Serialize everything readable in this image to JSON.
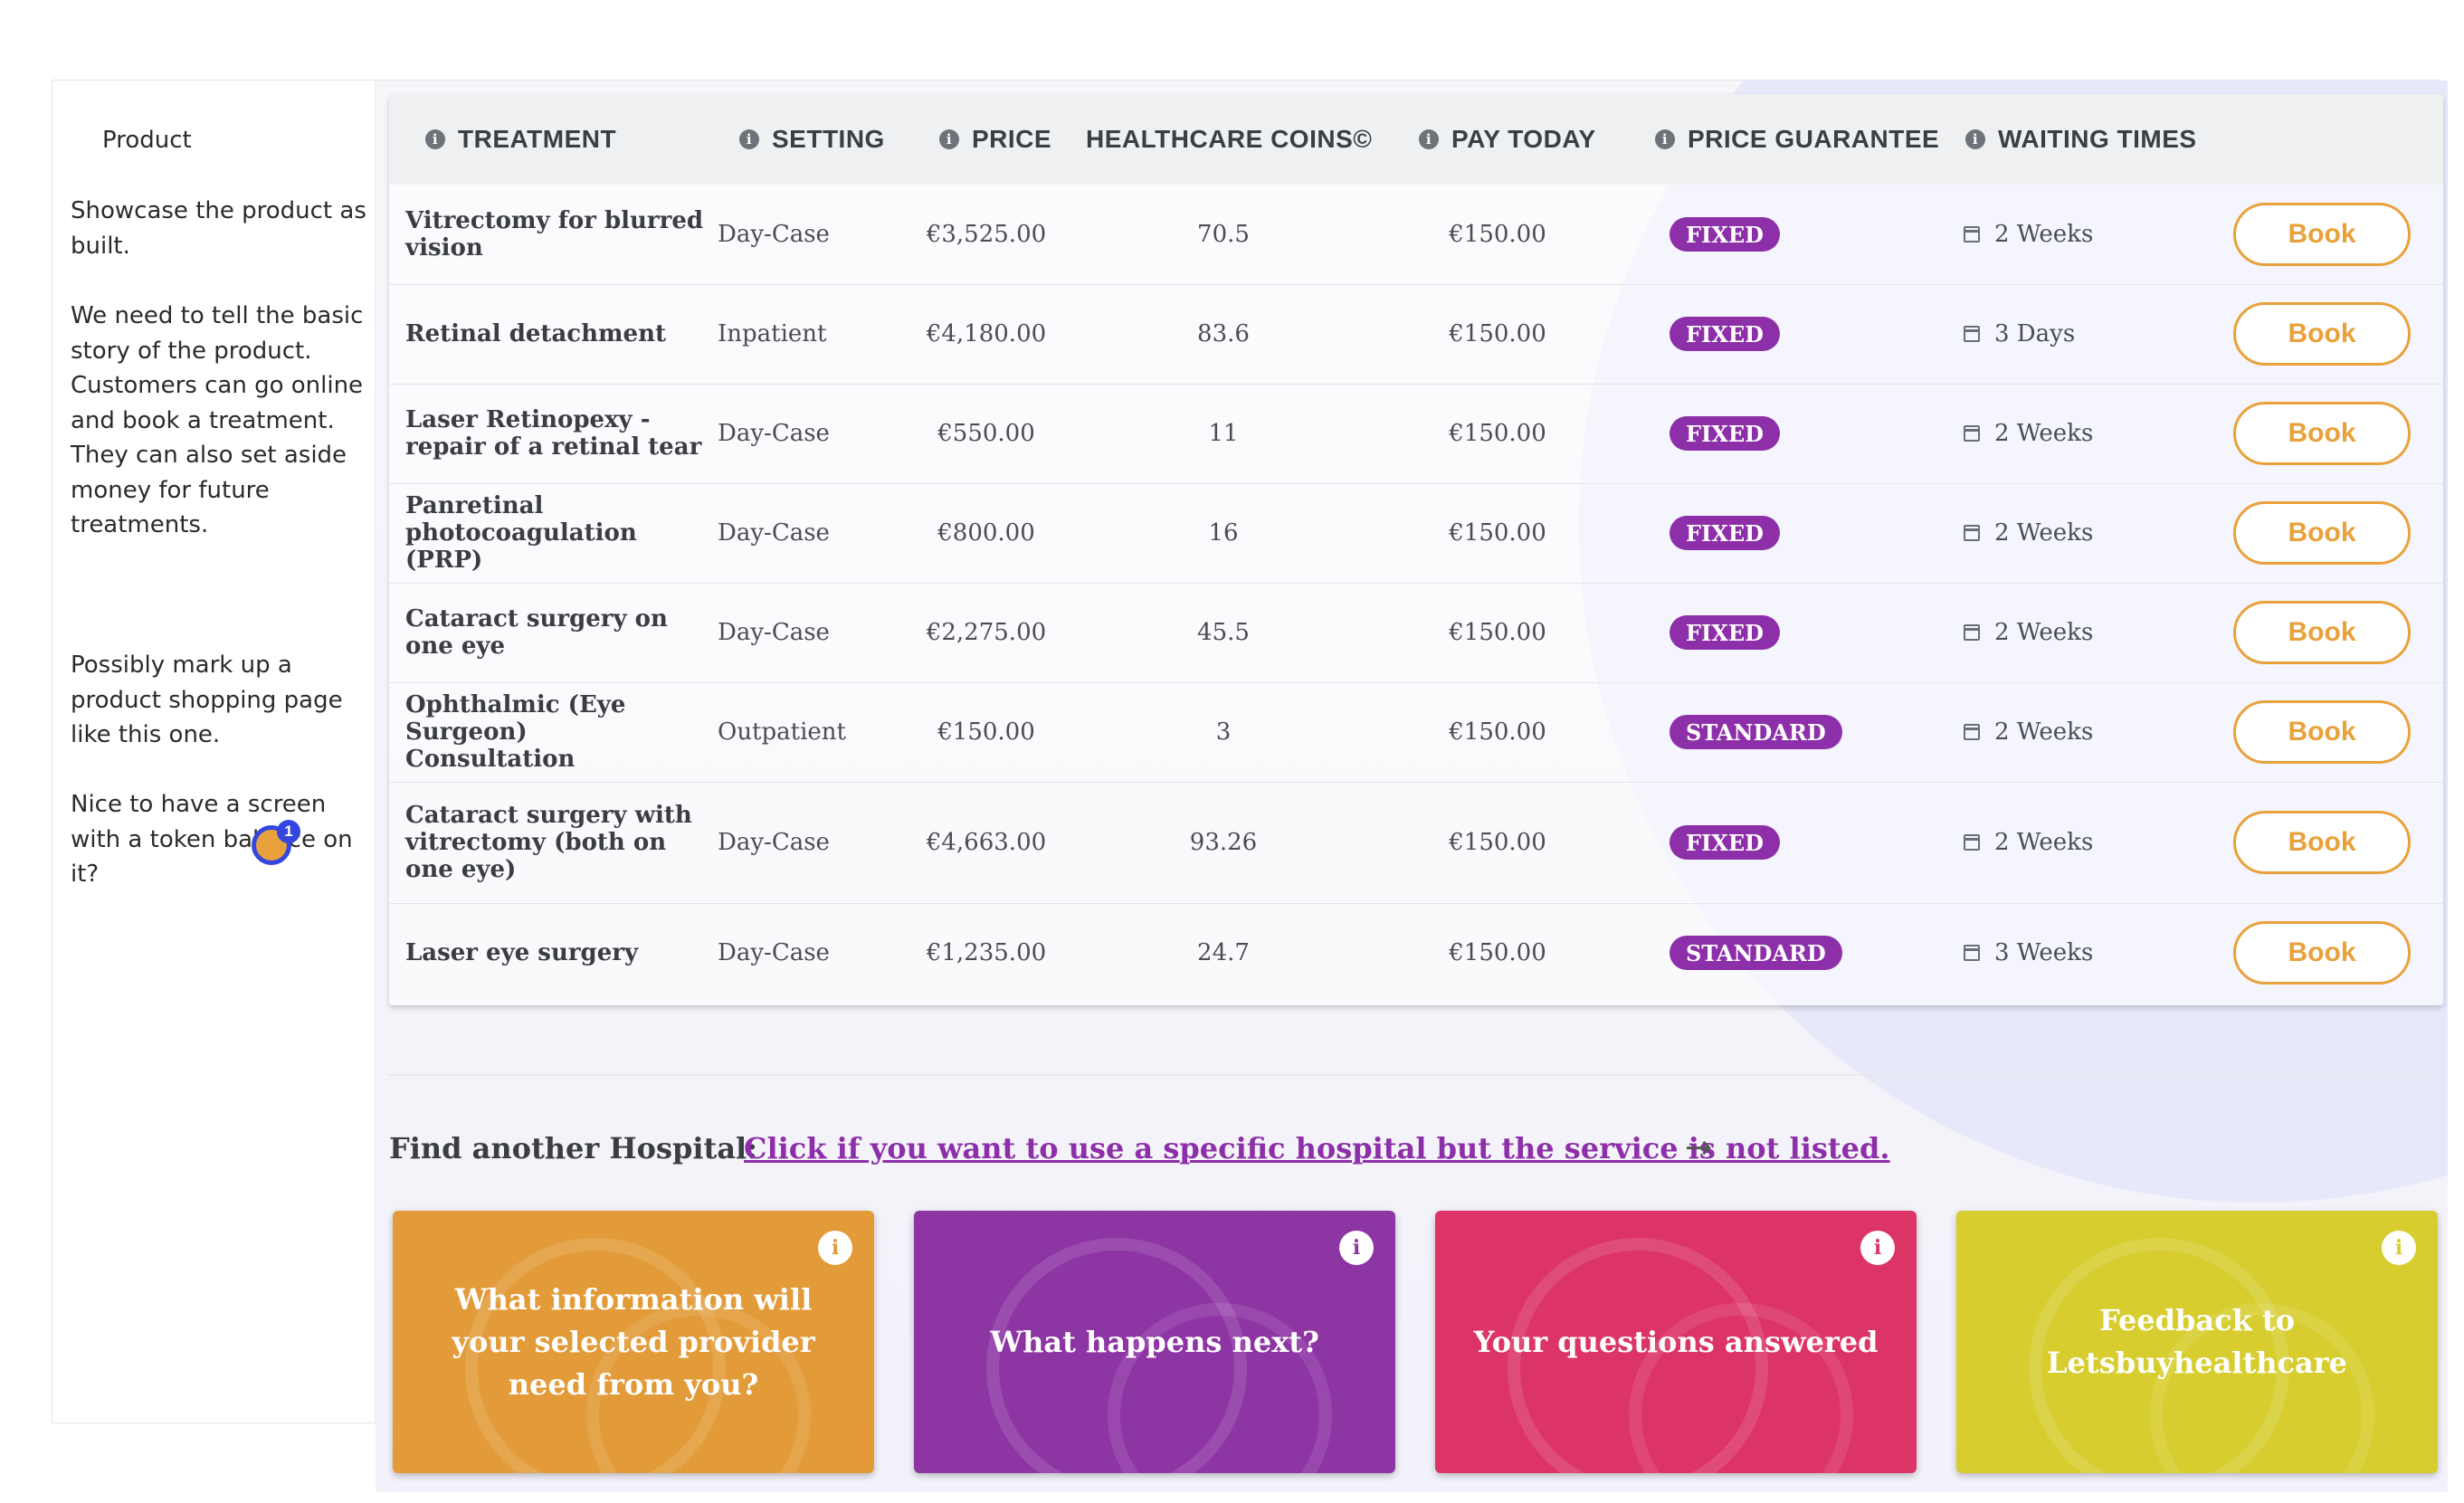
{
  "notes": {
    "title": "Product",
    "p1": "Showcase the product as\nbuilt.",
    "p2": "We need to tell the basic\nstory of the product.\nCustomers can go online\nand book a treatment.\nThey can also set aside\nmoney for future\ntreatments.",
    "p3": "Possibly mark up a\nproduct shopping page\nlike this one.",
    "p4": "Nice to have a screen\nwith a token balance on\nit?",
    "cursor_badge": "1"
  },
  "table": {
    "headers": {
      "treatment": "TREATMENT",
      "setting": "SETTING",
      "price": "PRICE",
      "coins": "HEALTHCARE COINS©",
      "pay_today": "PAY TODAY",
      "guarantee": "PRICE GUARANTEE",
      "waiting": "WAITING TIMES"
    },
    "book_label": "Book",
    "rows": [
      {
        "treatment": "Vitrectomy for blurred vision",
        "setting": "Day-Case",
        "price": "€3,525.00",
        "coins": "70.5",
        "pay_today": "€150.00",
        "guarantee": "FIXED",
        "waiting": "2 Weeks"
      },
      {
        "treatment": "Retinal detachment",
        "setting": "Inpatient",
        "price": "€4,180.00",
        "coins": "83.6",
        "pay_today": "€150.00",
        "guarantee": "FIXED",
        "waiting": "3 Days"
      },
      {
        "treatment": "Laser Retinopexy - repair of a retinal tear",
        "setting": "Day-Case",
        "price": "€550.00",
        "coins": "11",
        "pay_today": "€150.00",
        "guarantee": "FIXED",
        "waiting": "2 Weeks"
      },
      {
        "treatment": "Panretinal photocoagulation (PRP)",
        "setting": "Day-Case",
        "price": "€800.00",
        "coins": "16",
        "pay_today": "€150.00",
        "guarantee": "FIXED",
        "waiting": "2 Weeks"
      },
      {
        "treatment": "Cataract surgery on one eye",
        "setting": "Day-Case",
        "price": "€2,275.00",
        "coins": "45.5",
        "pay_today": "€150.00",
        "guarantee": "FIXED",
        "waiting": "2 Weeks"
      },
      {
        "treatment": "Ophthalmic (Eye Surgeon) Consultation",
        "setting": "Outpatient",
        "price": "€150.00",
        "coins": "3",
        "pay_today": "€150.00",
        "guarantee": "STANDARD",
        "waiting": "2 Weeks"
      },
      {
        "treatment": "Cataract surgery with vitrectomy (both on one eye)",
        "setting": "Day-Case",
        "price": "€4,663.00",
        "coins": "93.26",
        "pay_today": "€150.00",
        "guarantee": "FIXED",
        "waiting": "2 Weeks"
      },
      {
        "treatment": "Laser eye surgery",
        "setting": "Day-Case",
        "price": "€1,235.00",
        "coins": "24.7",
        "pay_today": "€150.00",
        "guarantee": "STANDARD",
        "waiting": "3 Weeks"
      }
    ]
  },
  "find": {
    "label": "Find another Hospital:",
    "link": "Click if you want to use a specific hospital but the service is not listed.",
    "arrow": "→"
  },
  "cards": [
    {
      "text": "What information will your selected provider need from you?",
      "color": "#e29b38"
    },
    {
      "text": "What happens next?",
      "color": "#8e35a4"
    },
    {
      "text": "Your questions answered",
      "color": "#dc3466"
    },
    {
      "text": "Feedback to Letsbuyhealthcare",
      "color": "#d7cd2f"
    }
  ],
  "colors": {
    "accent_orange": "#e9a13b",
    "badge_purple": "#8d2fa8"
  }
}
